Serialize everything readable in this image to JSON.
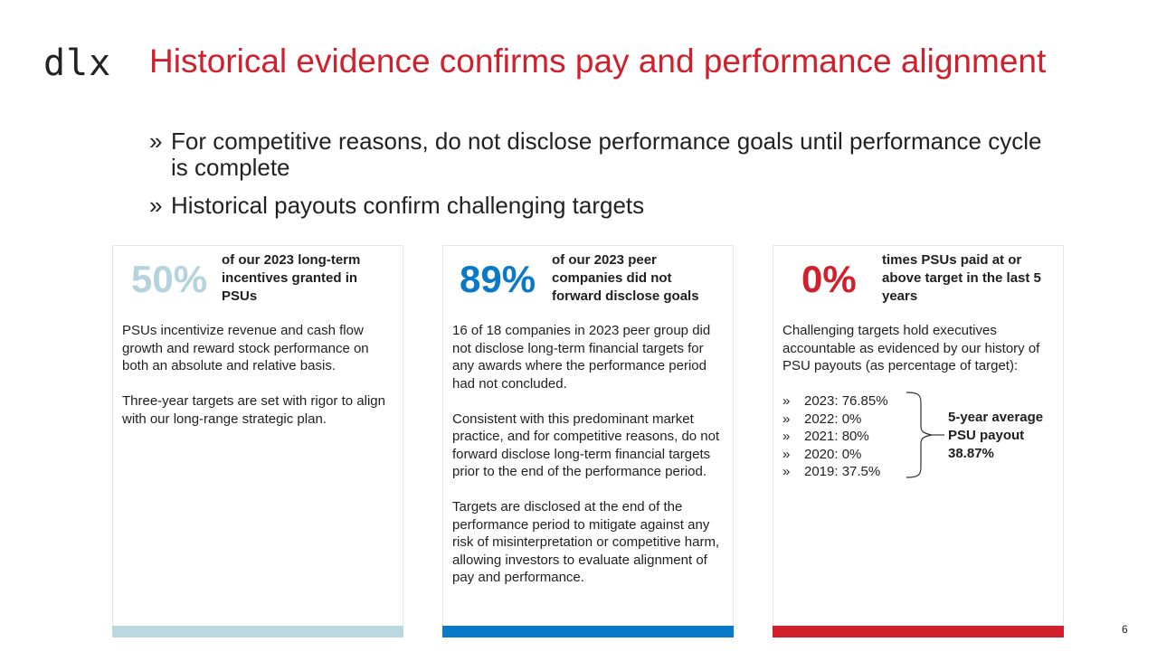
{
  "logo": "dlx",
  "title": "Historical evidence confirms pay and performance alignment",
  "bullets": [
    {
      "mark": "»",
      "text": "For competitive reasons, do not disclose performance goals until performance cycle is complete"
    },
    {
      "mark": "»",
      "text": "Historical payouts confirm challenging targets"
    }
  ],
  "cards": [
    {
      "stat": "50%",
      "stat_desc": "of our 2023 long-term incentives granted in PSUs",
      "paragraphs": [
        "PSUs incentivize revenue and cash flow growth and reward stock performance on both an absolute and relative basis.",
        "Three-year targets are set with rigor to align with our long-range strategic plan."
      ]
    },
    {
      "stat": "89%",
      "stat_desc": "of our 2023 peer companies did not forward disclose goals",
      "paragraphs": [
        "16 of 18 companies in 2023 peer group did not disclose long-term financial targets for any awards where the performance period had not concluded.",
        "Consistent with this predominant market practice, and for competitive reasons, do not forward disclose long-term financial targets prior to the end of the performance period.",
        "Targets are disclosed at the end of the performance period to mitigate against any risk of misinterpretation or competitive harm, allowing investors to evaluate alignment of pay and performance."
      ]
    },
    {
      "stat": "0%",
      "stat_desc": "times PSUs paid at or above target in the last 5 years",
      "paragraphs": [
        "Challenging targets hold executives accountable as evidenced by our history of PSU payouts (as percentage of target):"
      ],
      "payouts": [
        {
          "mark": "»",
          "text": "2023: 76.85%"
        },
        {
          "mark": "»",
          "text": "2022: 0%"
        },
        {
          "mark": "»",
          "text": "2021: 80%"
        },
        {
          "mark": "»",
          "text": "2020: 0%"
        },
        {
          "mark": "»",
          "text": "2019: 37.5%"
        }
      ],
      "average": "5-year average PSU payout 38.87%"
    }
  ],
  "page_number": "6",
  "colors": {
    "title_red": "#d11f2c",
    "stat1": "#b4d3dc",
    "stat2": "#0b79c9",
    "stat3": "#d11f2c",
    "bar1": "#bad8df",
    "bar2": "#0b79c9",
    "bar3": "#d11f2c"
  }
}
